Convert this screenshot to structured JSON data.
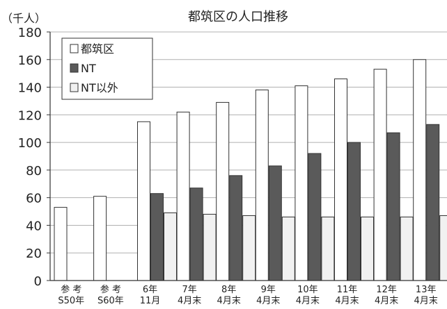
{
  "chart_data": {
    "type": "bar",
    "title": "都筑区の人口推移",
    "unit_label": "（千人）",
    "ylim": [
      0,
      180
    ],
    "yticks": [
      0,
      20,
      40,
      60,
      80,
      100,
      120,
      140,
      160,
      180
    ],
    "grid": true,
    "legend_position": "top-left",
    "categories": [
      [
        "参 考",
        "S50年"
      ],
      [
        "参 考",
        "S60年"
      ],
      [
        "6年",
        "11月"
      ],
      [
        "7年",
        "4月末"
      ],
      [
        "8年",
        "4月末"
      ],
      [
        "9年",
        "4月末"
      ],
      [
        "10年",
        "4月末"
      ],
      [
        "11年",
        "4月末"
      ],
      [
        "12年",
        "4月末"
      ],
      [
        "13年",
        "4月末"
      ]
    ],
    "series": [
      {
        "name": "都筑区",
        "color": "#ffffff",
        "values": [
          53,
          61,
          115,
          122,
          129,
          138,
          141,
          146,
          153,
          160
        ]
      },
      {
        "name": "NT",
        "color": "#5a5a5a",
        "values": [
          null,
          null,
          63,
          67,
          76,
          83,
          92,
          100,
          107,
          113
        ]
      },
      {
        "name": "NT以外",
        "color": "#f1f1f1",
        "values": [
          null,
          null,
          49,
          48,
          47,
          46,
          46,
          46,
          46,
          47
        ]
      }
    ]
  }
}
